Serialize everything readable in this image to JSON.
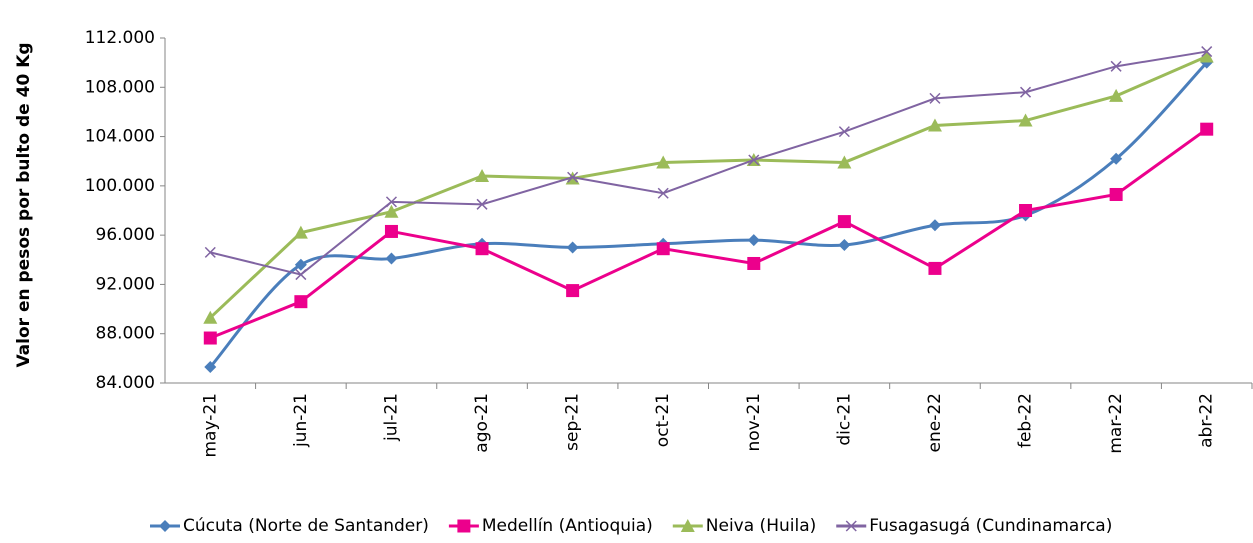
{
  "chart_data": {
    "type": "line",
    "y_label": "Valor en pesos por bulto de 40 Kg",
    "categories": [
      "may-21",
      "jun-21",
      "jul-21",
      "ago-21",
      "sep-21",
      "oct-21",
      "nov-21",
      "dic-21",
      "ene-22",
      "feb-22",
      "mar-22",
      "abr-22"
    ],
    "series": [
      {
        "name": "Cúcuta (Norte de Santander)",
        "color": "#4a7ebb",
        "marker": "diamond",
        "smooth": true,
        "values": [
          85300,
          93600,
          94100,
          95300,
          95000,
          95300,
          95600,
          95200,
          96800,
          97600,
          102200,
          110000
        ]
      },
      {
        "name": "Medellín (Antioquia)",
        "color": "#ec008c",
        "marker": "square",
        "smooth": false,
        "values": [
          87650,
          90600,
          96300,
          94900,
          91500,
          94900,
          93700,
          97100,
          93300,
          98000,
          99300,
          104600
        ]
      },
      {
        "name": "Neiva (Huila)",
        "color": "#9bbb59",
        "marker": "triangle",
        "smooth": false,
        "values": [
          89300,
          96200,
          97900,
          100800,
          100600,
          101900,
          102100,
          101900,
          104900,
          105300,
          107300,
          110500
        ]
      },
      {
        "name": "Fusagasugá (Cundinamarca)",
        "color": "#8064a2",
        "marker": "x",
        "smooth": false,
        "values": [
          94600,
          92800,
          98700,
          98500,
          100700,
          99400,
          102100,
          104400,
          107100,
          107600,
          109700,
          110900
        ]
      }
    ],
    "ylim": [
      84000,
      112000
    ],
    "yticks": [
      {
        "value": 84000,
        "label": "84.000"
      },
      {
        "value": 88000,
        "label": "88.000"
      },
      {
        "value": 92000,
        "label": "92.000"
      },
      {
        "value": 96000,
        "label": "96.000"
      },
      {
        "value": 100000,
        "label": "100.000"
      },
      {
        "value": 104000,
        "label": "104.000"
      },
      {
        "value": 108000,
        "label": "108.000"
      },
      {
        "value": 112000,
        "label": "112.000"
      }
    ],
    "legend": "bottom"
  }
}
